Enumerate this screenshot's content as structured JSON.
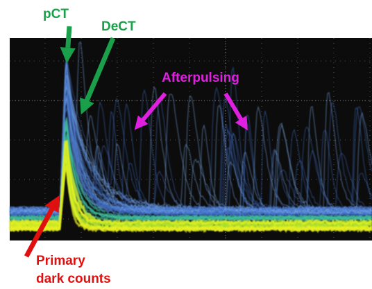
{
  "labels": {
    "pct": "pCT",
    "dect": "DeCT",
    "afterpulsing": "Afterpulsing",
    "primary": [
      "Primary",
      "dark counts"
    ]
  }
}
